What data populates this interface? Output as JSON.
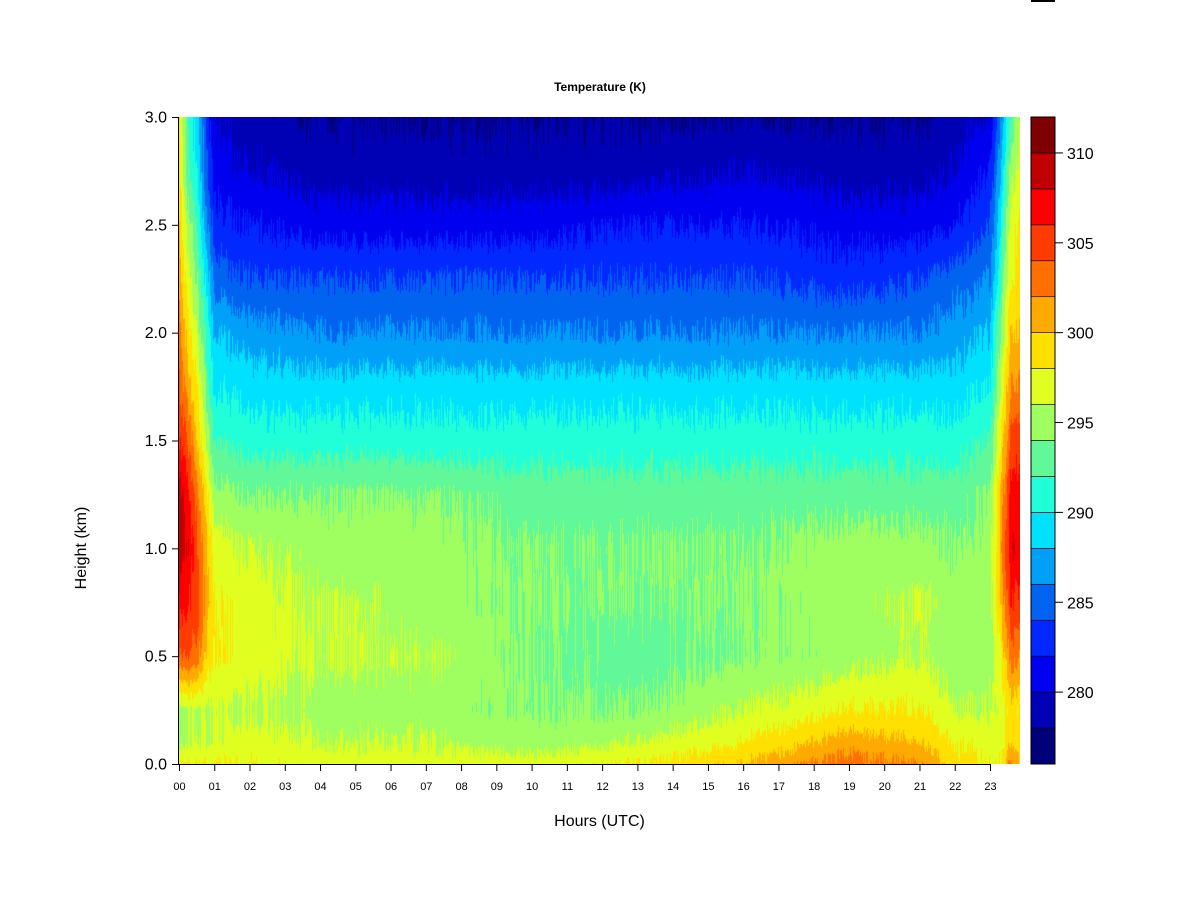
{
  "chart_data": {
    "type": "heatmap",
    "subtype": "filled-contour",
    "title": "Temperature (K)",
    "xlabel": "Hours (UTC)",
    "ylabel": "Height (km)",
    "xlim": [
      0,
      23.85
    ],
    "ylim": [
      0,
      3.0
    ],
    "x_tick_labels": [
      "00",
      "01",
      "02",
      "03",
      "04",
      "05",
      "06",
      "07",
      "08",
      "09",
      "10",
      "11",
      "12",
      "13",
      "14",
      "15",
      "16",
      "17",
      "18",
      "19",
      "20",
      "21",
      "22",
      "23"
    ],
    "y_tick_labels": [
      "0.0",
      "0.5",
      "1.0",
      "1.5",
      "2.0",
      "2.5",
      "3.0"
    ],
    "y_ticks": [
      0,
      0.5,
      1.0,
      1.5,
      2.0,
      2.5,
      3.0
    ],
    "heights_km": [
      0,
      0.1,
      0.25,
      0.5,
      0.75,
      1.0,
      1.25,
      1.5,
      1.75,
      2.0,
      2.25,
      2.5,
      2.75,
      3.0
    ],
    "profiles": [
      {
        "hour": 0.0,
        "temperature_K": [
          298,
          295,
          295,
          304,
          307,
          309,
          309,
          306,
          304,
          303,
          301,
          300,
          299,
          298
        ]
      },
      {
        "hour": 0.25,
        "temperature_K": [
          298,
          296,
          296,
          304,
          306,
          308,
          307,
          304,
          301,
          299,
          297,
          295,
          293,
          292
        ]
      },
      {
        "hour": 0.5,
        "temperature_K": [
          298,
          296,
          296,
          303,
          305,
          305,
          303,
          300,
          298,
          296,
          294,
          292,
          290,
          289
        ]
      },
      {
        "hour": 0.75,
        "temperature_K": [
          298,
          296,
          296,
          300,
          302,
          301,
          299,
          296,
          294,
          292,
          290,
          287,
          285,
          284
        ]
      },
      {
        "hour": 1.0,
        "temperature_K": [
          298,
          296,
          296,
          298,
          298,
          297,
          295,
          292,
          290,
          288,
          285,
          283,
          281,
          280
        ]
      },
      {
        "hour": 2.0,
        "temperature_K": [
          298,
          297,
          296,
          297,
          297,
          296,
          294,
          291,
          289,
          287,
          284,
          282,
          280,
          279
        ]
      },
      {
        "hour": 4.0,
        "temperature_K": [
          297,
          296,
          295,
          296,
          296,
          295,
          294,
          291,
          289,
          286,
          284,
          281,
          279,
          278
        ]
      },
      {
        "hour": 7.0,
        "temperature_K": [
          297,
          296,
          295,
          296,
          295,
          295,
          294,
          291,
          289,
          286,
          284,
          281,
          279,
          278
        ]
      },
      {
        "hour": 10.0,
        "temperature_K": [
          297,
          295,
          294,
          294,
          294,
          294,
          293,
          291,
          289,
          286,
          284,
          281,
          279,
          278
        ]
      },
      {
        "hour": 13.0,
        "temperature_K": [
          298,
          296,
          294,
          293,
          294,
          294,
          293,
          291,
          289,
          286,
          284,
          282,
          279,
          278
        ]
      },
      {
        "hour": 16.0,
        "temperature_K": [
          300,
          298,
          296,
          294,
          294,
          294,
          293,
          291,
          289,
          286,
          284,
          282,
          280,
          278
        ]
      },
      {
        "hour": 19.0,
        "temperature_K": [
          303,
          301,
          298,
          295,
          295,
          295,
          293,
          291,
          289,
          286,
          283,
          281,
          279,
          278
        ]
      },
      {
        "hour": 21.0,
        "temperature_K": [
          302,
          300,
          298,
          296,
          296,
          295,
          293,
          291,
          289,
          286,
          284,
          281,
          279,
          278
        ]
      },
      {
        "hour": 22.0,
        "temperature_K": [
          299,
          298,
          296,
          295,
          295,
          294,
          293,
          291,
          289,
          287,
          285,
          282,
          280,
          279
        ]
      },
      {
        "hour": 23.0,
        "temperature_K": [
          298,
          297,
          296,
          295,
          295,
          295,
          294,
          292,
          290,
          288,
          286,
          284,
          282,
          280
        ]
      },
      {
        "hour": 23.3,
        "temperature_K": [
          298,
          297,
          297,
          298,
          300,
          301,
          300,
          298,
          296,
          294,
          292,
          290,
          288,
          286
        ]
      },
      {
        "hour": 23.6,
        "temperature_K": [
          303,
          300,
          299,
          303,
          306,
          308,
          307,
          305,
          302,
          300,
          298,
          297,
          295,
          292
        ]
      },
      {
        "hour": 23.85,
        "temperature_K": [
          300,
          299,
          298,
          302,
          305,
          307,
          307,
          305,
          302,
          300,
          299,
          298,
          297,
          296
        ]
      }
    ],
    "colorbar": {
      "levels": [
        276,
        278,
        280,
        282,
        284,
        286,
        288,
        290,
        292,
        294,
        296,
        298,
        300,
        302,
        304,
        306,
        308,
        310,
        312
      ],
      "tick_values": [
        280,
        285,
        290,
        295,
        300,
        305,
        310
      ],
      "tick_labels": [
        "280",
        "285",
        "290",
        "295",
        "300",
        "305",
        "310"
      ],
      "colors": [
        "#00007a",
        "#0000b4",
        "#0000f0",
        "#0028ff",
        "#0064f0",
        "#00a0f8",
        "#00e0ff",
        "#20ffd8",
        "#60f898",
        "#a0ff60",
        "#e0ff20",
        "#ffe000",
        "#ffaa00",
        "#ff7000",
        "#ff3c00",
        "#ff0000",
        "#c00000",
        "#7f0000"
      ]
    }
  }
}
